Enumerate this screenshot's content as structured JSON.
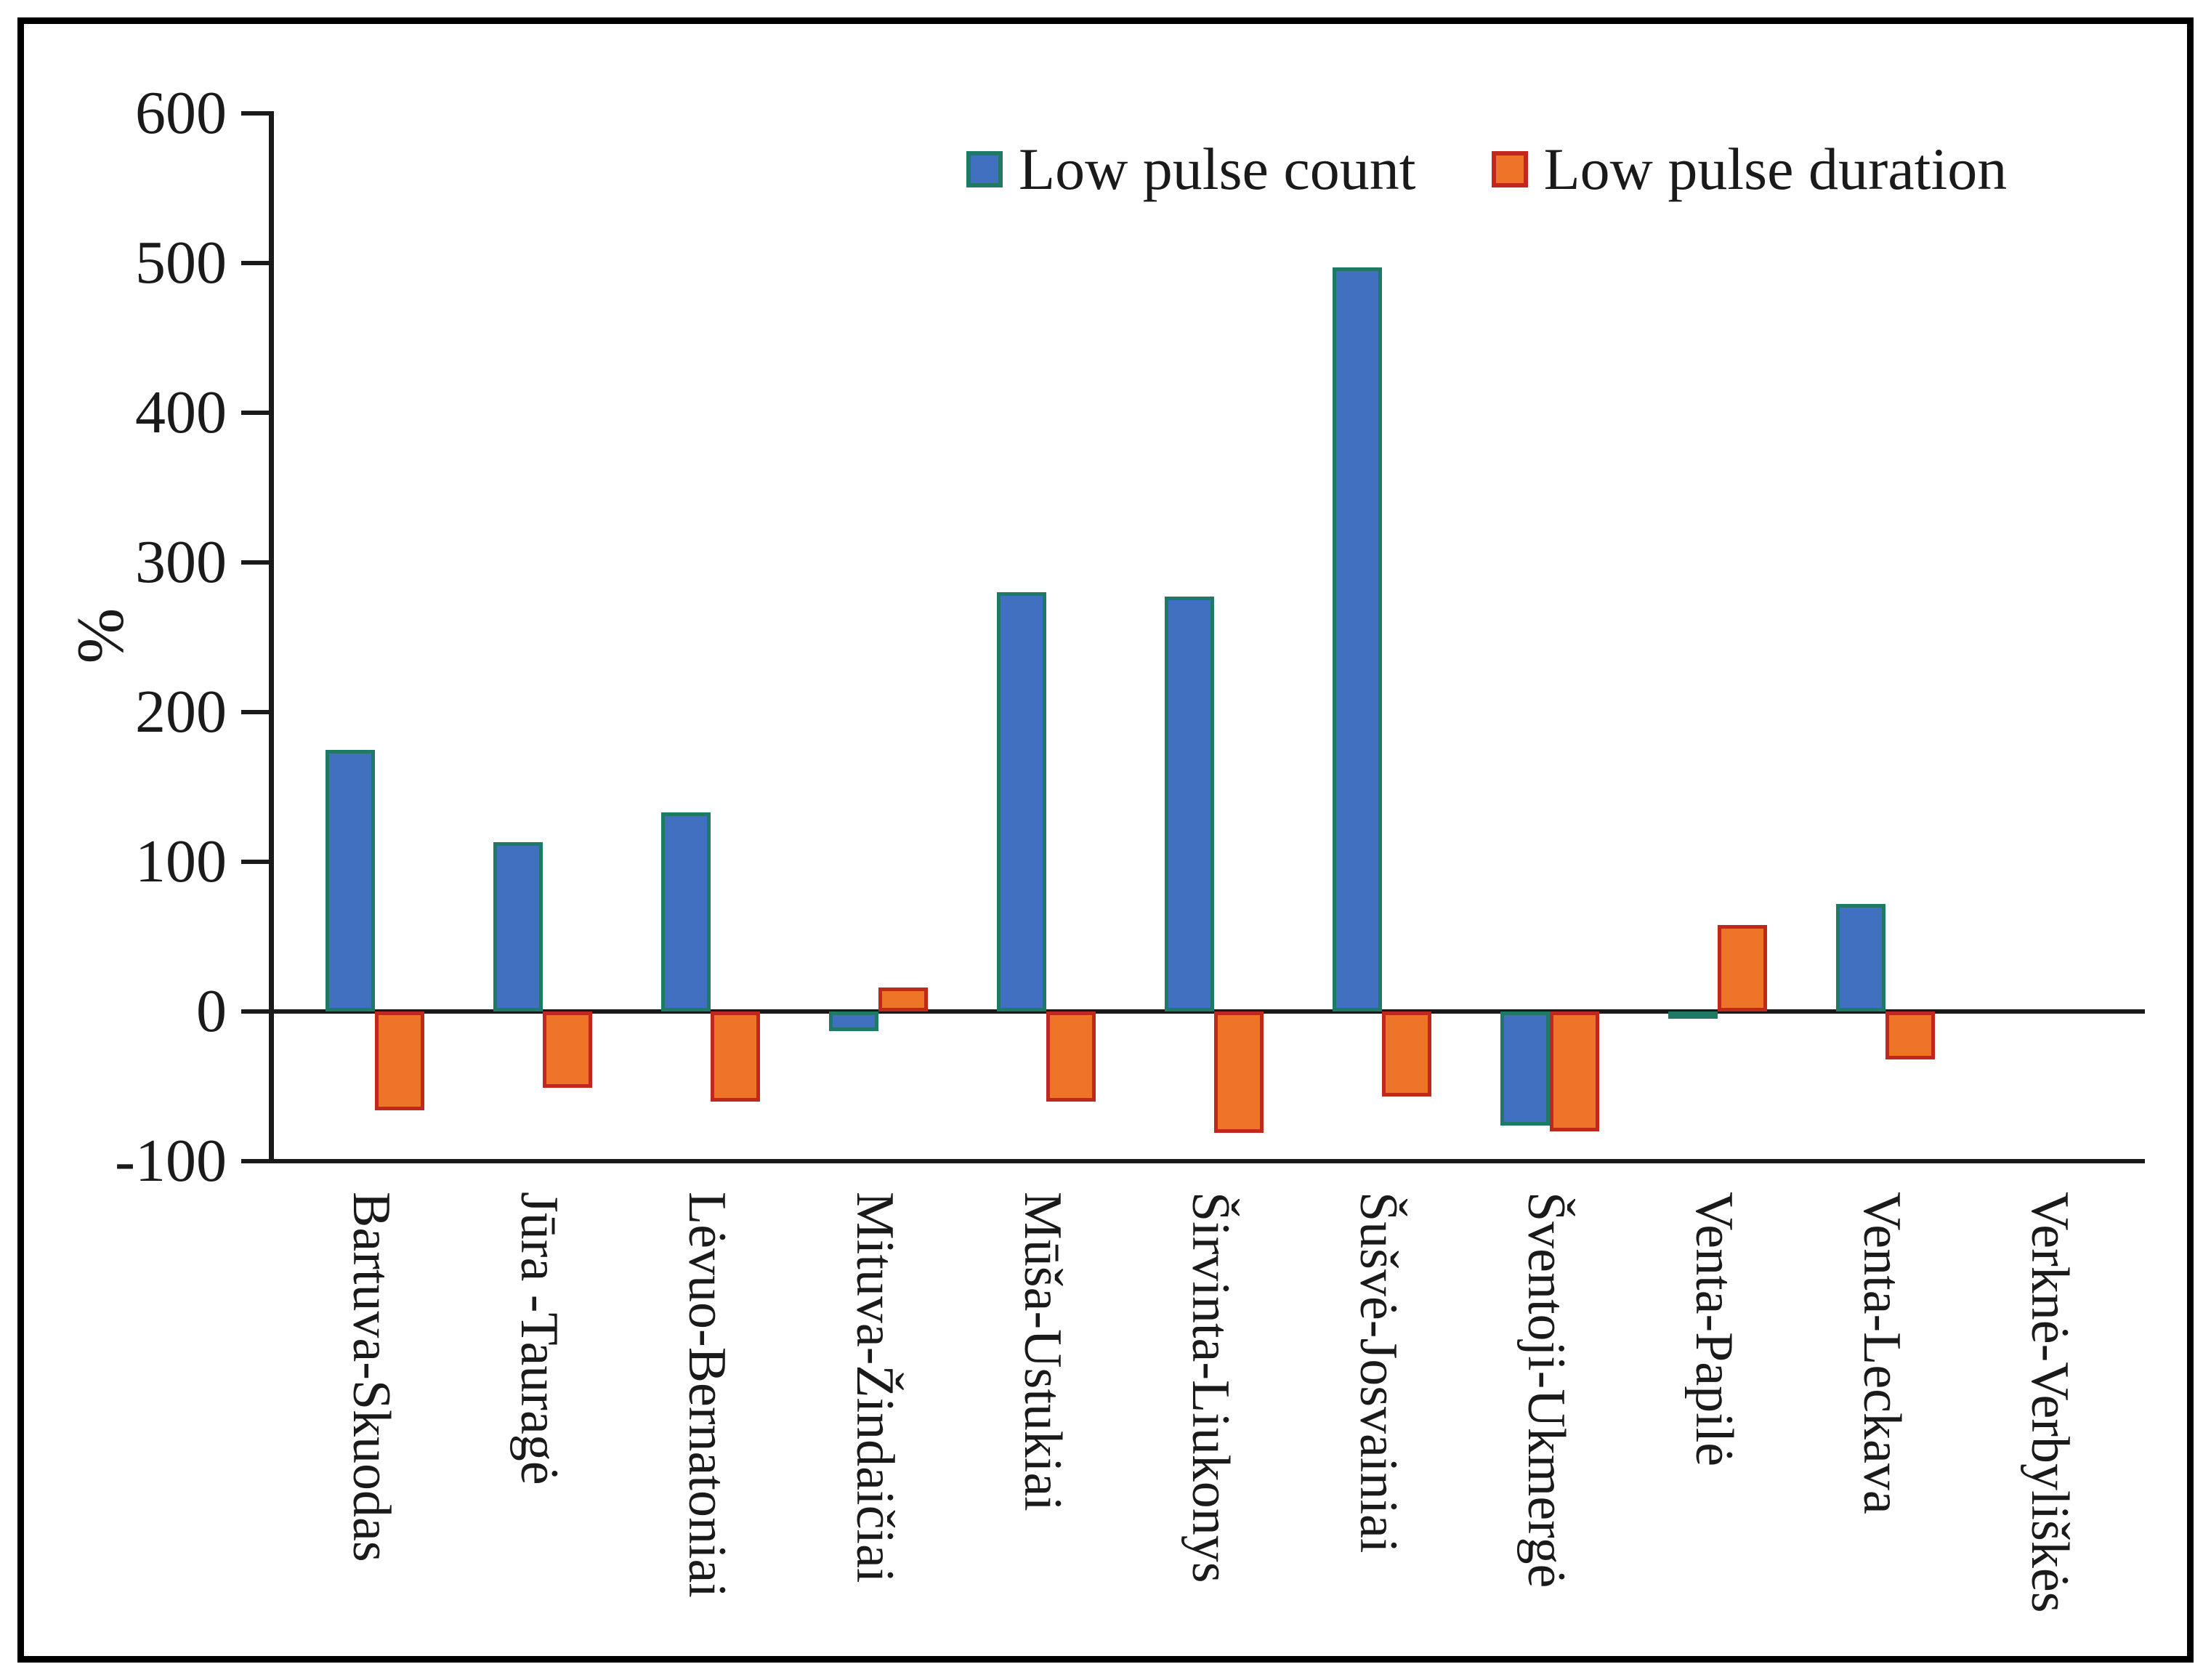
{
  "figure": {
    "background": "#ffffff",
    "frame_color": "#000000"
  },
  "chart_data": {
    "type": "bar",
    "title": "",
    "xlabel": "",
    "ylabel": "%",
    "ylim": [
      -100,
      600
    ],
    "yticks": [
      600,
      500,
      400,
      300,
      200,
      100,
      0,
      -100
    ],
    "grid": false,
    "legend_position": "top-center",
    "categories": [
      "Bartuva-Skuodas",
      "Jūra -Tauragė",
      "Lėvuo-Bernatoniai",
      "Mituva-Žindaičiai",
      "Mūša-Ustukiai",
      "Širvinta-Liukonys",
      "Šušvė-Josvainiai",
      "Šventoji-Ukmergė",
      "Venta-Papilė",
      "Venta-Leckava",
      "Verknė-Verbyliškės"
    ],
    "series": [
      {
        "name": "Low pulse count",
        "fill": "#4170C0",
        "border": "#1F7A65",
        "values": [
          175,
          113,
          133,
          -13,
          280,
          277,
          497,
          -76,
          -3,
          72,
          0
        ]
      },
      {
        "name": "Low pulse duration",
        "fill": "#EE7528",
        "border": "#C0281E",
        "values": [
          -66,
          -51,
          -60,
          16,
          -60,
          -81,
          -57,
          -80,
          58,
          -32,
          0
        ]
      }
    ]
  }
}
